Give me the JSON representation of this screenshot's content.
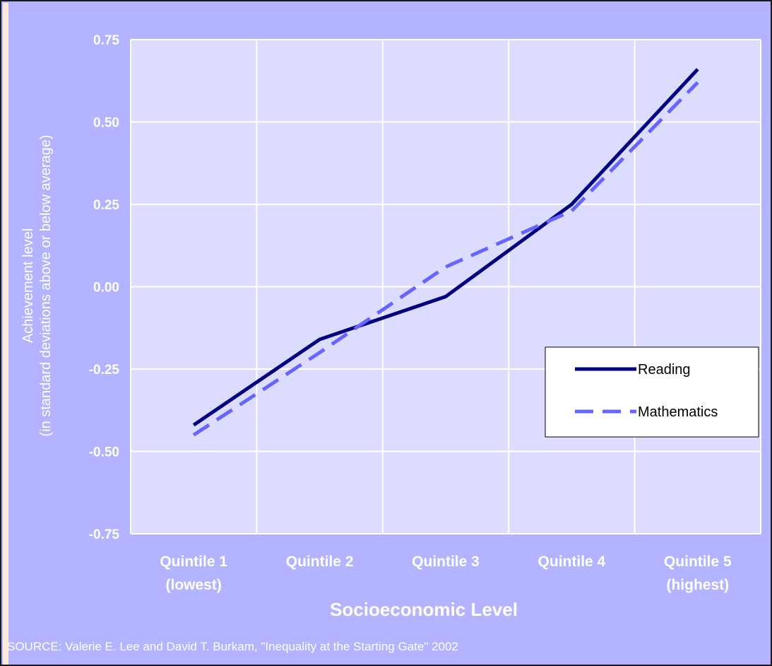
{
  "chart_data": {
    "type": "line",
    "xlabel": "Socioeconomic Level",
    "ylabel_line1": "Achievement level",
    "ylabel_line2": "(in standard deviations above or below average)",
    "categories": [
      [
        "Quintile 1",
        "(lowest)"
      ],
      [
        "Quintile 2"
      ],
      [
        "Quintile 3"
      ],
      [
        "Quintile 4"
      ],
      [
        "Quintile 5",
        "(highest)"
      ]
    ],
    "ylim": [
      -0.75,
      0.75
    ],
    "yticks": [
      "0.75",
      "0.50",
      "0.25",
      "0.00",
      "-0.25",
      "-0.50",
      "-0.75"
    ],
    "series": [
      {
        "name": "Reading",
        "values": [
          -0.42,
          -0.16,
          -0.03,
          0.25,
          0.66
        ],
        "color": "#000080",
        "style": "solid"
      },
      {
        "name": "Mathematics",
        "values": [
          -0.45,
          -0.2,
          0.06,
          0.23,
          0.62
        ],
        "color": "#6666ff",
        "style": "dashed"
      }
    ],
    "grid": true,
    "legend_position": "right"
  },
  "source": "SOURCE: Valerie E. Lee and David T. Burkam, \"Inequality at the Starting Gate\" 2002",
  "colors": {
    "background": "#b3b3ff",
    "plot_area": "#dcdcff",
    "gridline": "#ffffff",
    "left_strip": "#fde9d9"
  }
}
